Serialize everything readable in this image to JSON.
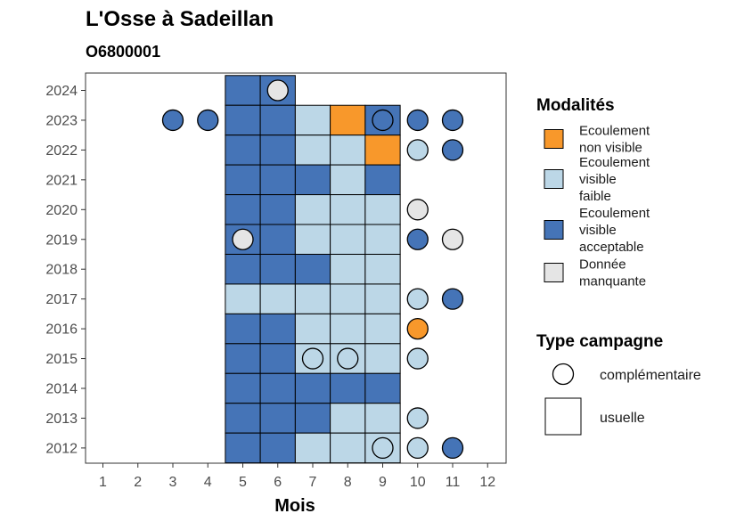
{
  "chart_data": {
    "type": "heatmap",
    "title": "L'Osse à Sadeillan",
    "subtitle": "O6800001",
    "xlabel": "Mois",
    "ylabel": "",
    "x_ticks": [
      "1",
      "2",
      "3",
      "4",
      "5",
      "6",
      "7",
      "8",
      "9",
      "10",
      "11",
      "12"
    ],
    "y_ticks": [
      "2024",
      "2023",
      "2022",
      "2021",
      "2020",
      "2019",
      "2018",
      "2017",
      "2016",
      "2015",
      "2014",
      "2013",
      "2012"
    ],
    "legend": {
      "modalites_title": "Modalités",
      "modalites": [
        {
          "key": "nv",
          "lines": [
            "Ecoulement",
            "non visible"
          ],
          "color": "#f8982b"
        },
        {
          "key": "vf",
          "lines": [
            "Ecoulement",
            "visible",
            "faible"
          ],
          "color": "#bcd7e7"
        },
        {
          "key": "va",
          "lines": [
            "Ecoulement",
            "visible",
            "acceptable"
          ],
          "color": "#4574b7"
        },
        {
          "key": "dm",
          "lines": [
            "Donnée",
            "manquante"
          ],
          "color": "#e5e5e5"
        }
      ],
      "campagne_title": "Type campagne",
      "campagnes": [
        {
          "key": "comp",
          "label": "complémentaire"
        },
        {
          "key": "usu",
          "label": "usuelle"
        }
      ]
    },
    "usuelle": [
      {
        "year": 2024,
        "month": 5,
        "m": "va"
      },
      {
        "year": 2024,
        "month": 6,
        "m": "va"
      },
      {
        "year": 2023,
        "month": 5,
        "m": "va"
      },
      {
        "year": 2023,
        "month": 6,
        "m": "va"
      },
      {
        "year": 2023,
        "month": 7,
        "m": "vf"
      },
      {
        "year": 2023,
        "month": 8,
        "m": "nv"
      },
      {
        "year": 2023,
        "month": 9,
        "m": "va"
      },
      {
        "year": 2022,
        "month": 5,
        "m": "va"
      },
      {
        "year": 2022,
        "month": 6,
        "m": "va"
      },
      {
        "year": 2022,
        "month": 7,
        "m": "vf"
      },
      {
        "year": 2022,
        "month": 8,
        "m": "vf"
      },
      {
        "year": 2022,
        "month": 9,
        "m": "nv"
      },
      {
        "year": 2021,
        "month": 5,
        "m": "va"
      },
      {
        "year": 2021,
        "month": 6,
        "m": "va"
      },
      {
        "year": 2021,
        "month": 7,
        "m": "va"
      },
      {
        "year": 2021,
        "month": 8,
        "m": "vf"
      },
      {
        "year": 2021,
        "month": 9,
        "m": "va"
      },
      {
        "year": 2020,
        "month": 5,
        "m": "va"
      },
      {
        "year": 2020,
        "month": 6,
        "m": "va"
      },
      {
        "year": 2020,
        "month": 7,
        "m": "vf"
      },
      {
        "year": 2020,
        "month": 8,
        "m": "vf"
      },
      {
        "year": 2020,
        "month": 9,
        "m": "vf"
      },
      {
        "year": 2019,
        "month": 5,
        "m": "va"
      },
      {
        "year": 2019,
        "month": 6,
        "m": "va"
      },
      {
        "year": 2019,
        "month": 7,
        "m": "vf"
      },
      {
        "year": 2019,
        "month": 8,
        "m": "vf"
      },
      {
        "year": 2019,
        "month": 9,
        "m": "vf"
      },
      {
        "year": 2018,
        "month": 5,
        "m": "va"
      },
      {
        "year": 2018,
        "month": 6,
        "m": "va"
      },
      {
        "year": 2018,
        "month": 7,
        "m": "va"
      },
      {
        "year": 2018,
        "month": 8,
        "m": "vf"
      },
      {
        "year": 2018,
        "month": 9,
        "m": "vf"
      },
      {
        "year": 2017,
        "month": 5,
        "m": "vf"
      },
      {
        "year": 2017,
        "month": 6,
        "m": "vf"
      },
      {
        "year": 2017,
        "month": 7,
        "m": "vf"
      },
      {
        "year": 2017,
        "month": 8,
        "m": "vf"
      },
      {
        "year": 2017,
        "month": 9,
        "m": "vf"
      },
      {
        "year": 2016,
        "month": 5,
        "m": "va"
      },
      {
        "year": 2016,
        "month": 6,
        "m": "va"
      },
      {
        "year": 2016,
        "month": 7,
        "m": "vf"
      },
      {
        "year": 2016,
        "month": 8,
        "m": "vf"
      },
      {
        "year": 2016,
        "month": 9,
        "m": "vf"
      },
      {
        "year": 2015,
        "month": 5,
        "m": "va"
      },
      {
        "year": 2015,
        "month": 6,
        "m": "va"
      },
      {
        "year": 2015,
        "month": 7,
        "m": "vf"
      },
      {
        "year": 2015,
        "month": 8,
        "m": "vf"
      },
      {
        "year": 2015,
        "month": 9,
        "m": "vf"
      },
      {
        "year": 2014,
        "month": 5,
        "m": "va"
      },
      {
        "year": 2014,
        "month": 6,
        "m": "va"
      },
      {
        "year": 2014,
        "month": 7,
        "m": "va"
      },
      {
        "year": 2014,
        "month": 8,
        "m": "va"
      },
      {
        "year": 2014,
        "month": 9,
        "m": "va"
      },
      {
        "year": 2013,
        "month": 5,
        "m": "va"
      },
      {
        "year": 2013,
        "month": 6,
        "m": "va"
      },
      {
        "year": 2013,
        "month": 7,
        "m": "va"
      },
      {
        "year": 2013,
        "month": 8,
        "m": "vf"
      },
      {
        "year": 2013,
        "month": 9,
        "m": "vf"
      },
      {
        "year": 2012,
        "month": 5,
        "m": "va"
      },
      {
        "year": 2012,
        "month": 6,
        "m": "va"
      },
      {
        "year": 2012,
        "month": 7,
        "m": "vf"
      },
      {
        "year": 2012,
        "month": 8,
        "m": "vf"
      },
      {
        "year": 2012,
        "month": 9,
        "m": "vf"
      }
    ],
    "complementaire": [
      {
        "year": 2024,
        "month": 6,
        "m": "dm"
      },
      {
        "year": 2023,
        "month": 3,
        "m": "va"
      },
      {
        "year": 2023,
        "month": 4,
        "m": "va"
      },
      {
        "year": 2023,
        "month": 9,
        "m": "va"
      },
      {
        "year": 2023,
        "month": 10,
        "m": "va"
      },
      {
        "year": 2023,
        "month": 11,
        "m": "va"
      },
      {
        "year": 2022,
        "month": 10,
        "m": "vf"
      },
      {
        "year": 2022,
        "month": 11,
        "m": "va"
      },
      {
        "year": 2020,
        "month": 10,
        "m": "dm"
      },
      {
        "year": 2019,
        "month": 5,
        "m": "dm"
      },
      {
        "year": 2019,
        "month": 10,
        "m": "va"
      },
      {
        "year": 2019,
        "month": 11,
        "m": "dm"
      },
      {
        "year": 2017,
        "month": 10,
        "m": "vf"
      },
      {
        "year": 2017,
        "month": 11,
        "m": "va"
      },
      {
        "year": 2016,
        "month": 10,
        "m": "nv"
      },
      {
        "year": 2015,
        "month": 7,
        "m": "vf"
      },
      {
        "year": 2015,
        "month": 8,
        "m": "vf"
      },
      {
        "year": 2015,
        "month": 10,
        "m": "vf"
      },
      {
        "year": 2013,
        "month": 10,
        "m": "vf"
      },
      {
        "year": 2012,
        "month": 9,
        "m": "vf"
      },
      {
        "year": 2012,
        "month": 10,
        "m": "vf"
      },
      {
        "year": 2012,
        "month": 11,
        "m": "va"
      }
    ]
  }
}
